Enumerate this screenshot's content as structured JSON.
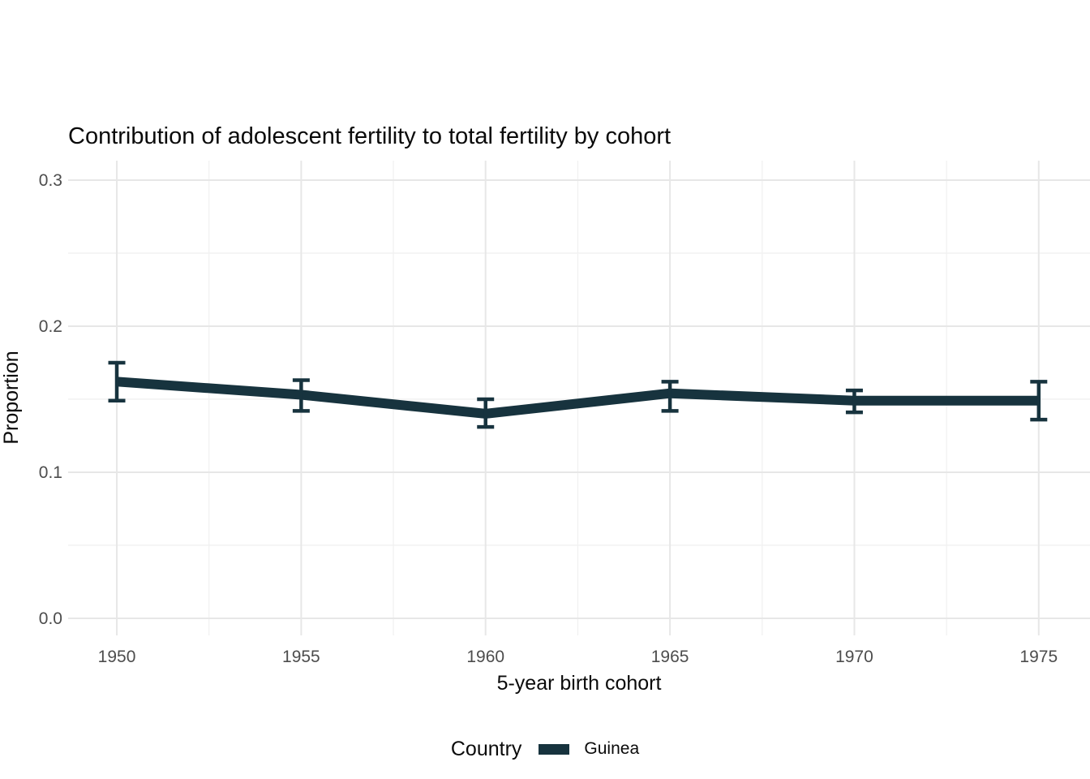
{
  "chart_data": {
    "type": "line",
    "title": "Contribution of adolescent fertility to total fertility by cohort",
    "xlabel": "5-year birth cohort",
    "ylabel": "Proportion",
    "x": [
      1950,
      1955,
      1960,
      1965,
      1970,
      1975
    ],
    "series": [
      {
        "name": "Guinea",
        "color": "#17333E",
        "values": [
          0.162,
          0.153,
          0.14,
          0.154,
          0.149,
          0.149
        ],
        "error_low": [
          0.149,
          0.142,
          0.131,
          0.142,
          0.141,
          0.136
        ],
        "error_high": [
          0.175,
          0.163,
          0.15,
          0.162,
          0.156,
          0.162
        ]
      }
    ],
    "legend": {
      "title": "Country",
      "position": "bottom",
      "entries": [
        {
          "label": "Guinea",
          "color": "#17333E"
        }
      ]
    },
    "axes": {
      "x_ticks": [
        1950,
        1955,
        1960,
        1965,
        1970,
        1975
      ],
      "x_tick_labels": [
        "1950",
        "1955",
        "1960",
        "1965",
        "1970",
        "1975"
      ],
      "x_minor": [
        1952.5,
        1957.5,
        1962.5,
        1967.5,
        1972.5
      ],
      "y_tick_values": [
        0.0,
        0.1,
        0.2,
        0.3
      ],
      "y_tick_labels": [
        "0.0",
        "0.1",
        "0.2",
        "0.3"
      ],
      "y_minor": [
        0.05,
        0.15,
        0.25
      ],
      "xlim": [
        1948.68,
        1976.39
      ],
      "ylim": [
        -0.0117,
        0.3133
      ],
      "grid": true
    },
    "colors": {
      "grid_major": "#e7e7e7",
      "grid_minor": "#f1f1f1",
      "tick_label": "#4d4d4d",
      "text": "#0a0a0a"
    }
  }
}
